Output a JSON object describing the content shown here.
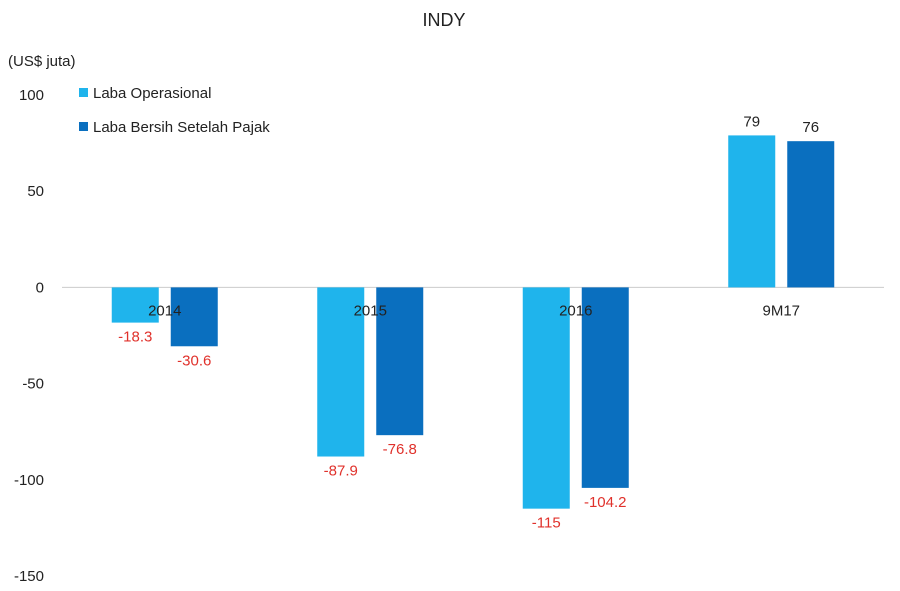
{
  "chart_data": {
    "type": "bar",
    "title": "INDY",
    "unit_label": "(US$ juta)",
    "categories": [
      "2014",
      "2015",
      "2016",
      "9M17"
    ],
    "series": [
      {
        "name": "Laba Operasional",
        "values": [
          -18.3,
          -87.9,
          -115,
          79
        ],
        "labels": [
          "-18.3",
          "-87.9",
          "-115",
          "79"
        ],
        "color": "#1fb4ec"
      },
      {
        "name": "Laba Bersih Setelah Pajak",
        "values": [
          -30.6,
          -76.8,
          -104.2,
          76
        ],
        "labels": [
          "-30.6",
          "-76.8",
          "-104.2",
          "76"
        ],
        "color": "#0a6fbf"
      }
    ],
    "yticks": [
      100,
      50,
      0,
      -50,
      -100,
      -150
    ],
    "ylim": [
      -150,
      100
    ],
    "grid": false,
    "legend_position": "top-left",
    "positive_label_color": "#222222",
    "negative_label_color": "#e0312b",
    "axis_color": "#cccccc"
  }
}
